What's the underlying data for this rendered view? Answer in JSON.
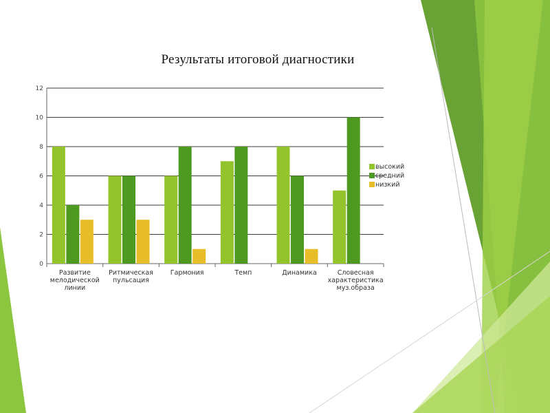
{
  "slide": {
    "title": "Результаты итоговой диагностики"
  },
  "colors": {
    "high": "#93c42b",
    "medium": "#4e9a20",
    "low": "#e8bd2a",
    "deco_light": "#bfe07a",
    "deco_mid": "#8cc63f",
    "deco_dark": "#5e9a2e"
  },
  "chart_data": {
    "type": "bar",
    "title": "Результаты итоговой диагностики",
    "categories": [
      [
        "Развитие",
        "мелодической",
        "линии"
      ],
      [
        "Ритмическая",
        "пульсация"
      ],
      [
        "Гармония"
      ],
      [
        "Темп"
      ],
      [
        "Динамика"
      ],
      [
        "Словесная",
        "характеристика",
        "муз.образа"
      ]
    ],
    "series": [
      {
        "name": "высокий",
        "color": "#93c42b",
        "values": [
          8,
          6,
          6,
          7,
          8,
          5
        ]
      },
      {
        "name": "средний",
        "color": "#4e9a20",
        "values": [
          4,
          6,
          8,
          8,
          6,
          10
        ]
      },
      {
        "name": "низкий",
        "color": "#e8bd2a",
        "values": [
          3,
          3,
          1,
          0,
          1,
          0
        ]
      }
    ],
    "yticks": [
      "0",
      "2",
      "4",
      "6",
      "8",
      "10",
      "12"
    ],
    "ylim": [
      0,
      12
    ],
    "grid": true,
    "legend_position": "right"
  }
}
